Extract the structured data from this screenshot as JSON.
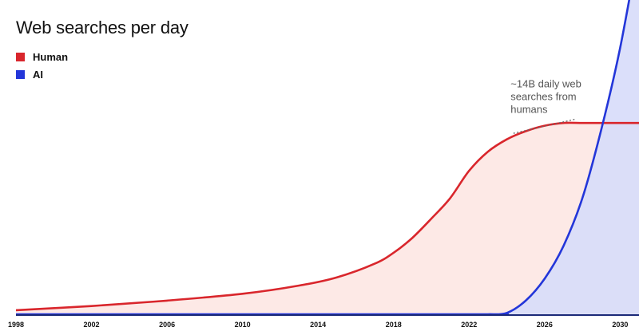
{
  "chart_data": {
    "type": "area",
    "title": "Web searches per day",
    "xlabel": "",
    "ylabel": "",
    "xlim": [
      1998,
      2031
    ],
    "ylim": [
      0,
      23
    ],
    "x_ticks": [
      1998,
      2002,
      2006,
      2010,
      2014,
      2018,
      2022,
      2026,
      2030
    ],
    "legend_position": "top-left",
    "grid": false,
    "series": [
      {
        "name": "Human",
        "color": "#d9262c",
        "fill": "#fde9e6",
        "x": [
          1998,
          2002,
          2006,
          2010,
          2013,
          2015,
          2017,
          2018,
          2019,
          2020,
          2021,
          2022,
          2023,
          2024,
          2025,
          2026,
          2027,
          2028,
          2029,
          2030,
          2031
        ],
        "y": [
          0.3,
          0.6,
          1.0,
          1.5,
          2.1,
          2.7,
          3.7,
          4.5,
          5.6,
          7.0,
          8.5,
          10.5,
          11.9,
          12.8,
          13.4,
          13.8,
          14.0,
          14.0,
          14.0,
          14.0,
          14.0
        ]
      },
      {
        "name": "AI",
        "color": "#2336d9",
        "fill": "#d8dcfa",
        "x": [
          1998,
          2022,
          2023,
          2024,
          2025,
          2026,
          2027,
          2028,
          2029,
          2030,
          2031
        ],
        "y": [
          0,
          0,
          0,
          0.1,
          1.0,
          2.6,
          5.0,
          8.5,
          13.5,
          19.5,
          27.0
        ]
      }
    ],
    "annotations": [
      {
        "lines": [
          "~14B daily web",
          "searches from",
          "humans"
        ],
        "series": "Human",
        "target_x": 2024.3,
        "text_x": 2024.2,
        "text_y": 16.6
      }
    ]
  }
}
